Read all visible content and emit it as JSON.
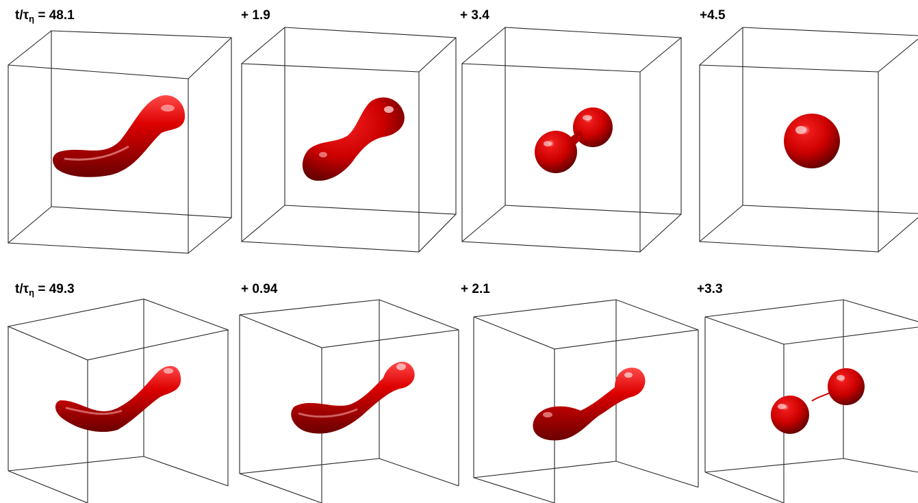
{
  "colors": {
    "droplet": "#d40000",
    "droplet_dark": "#5a0000",
    "box_edge": "#222222"
  },
  "rows": [
    {
      "panels": [
        {
          "label_prefix": "t/τ",
          "label_sub": "η",
          "label_suffix": " = 48.1",
          "shape": "elongated-curved-filament"
        },
        {
          "label_prefix": "+ 1.9",
          "shape": "dumbbell-with-neck"
        },
        {
          "label_prefix": "+ 3.4",
          "shape": "pinching-dumbbell"
        },
        {
          "label_prefix": "+4.5",
          "shape": "single-spherical-droplet"
        }
      ]
    },
    {
      "panels": [
        {
          "label_prefix": "t/τ",
          "label_sub": "η",
          "label_suffix": " = 49.3",
          "shape": "elongated-curved-filament"
        },
        {
          "label_prefix": "+ 0.94",
          "shape": "filament-with-bulb"
        },
        {
          "label_prefix": "+ 2.1",
          "shape": "thin-thread-dumbbell"
        },
        {
          "label_prefix": "+3.3",
          "shape": "breaking-thread-two-droplets"
        }
      ]
    }
  ]
}
